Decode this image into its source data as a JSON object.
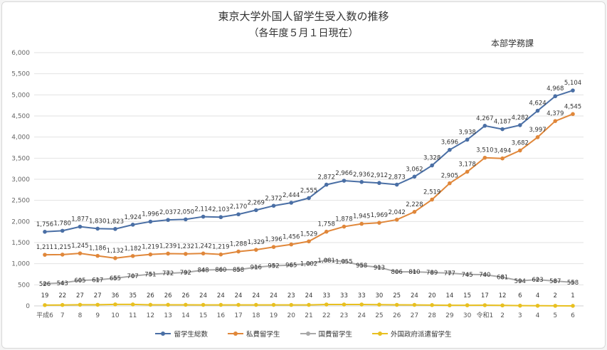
{
  "title": "東京大学外国人留学生受入数の推移",
  "subtitle": "（各年度５月１日現在）",
  "department": "本部学務課",
  "chart_data": {
    "type": "line",
    "categories": [
      "平成6",
      "7",
      "8",
      "9",
      "10",
      "11",
      "12",
      "13",
      "14",
      "15",
      "16",
      "17",
      "18",
      "19",
      "20",
      "21",
      "22",
      "23",
      "24",
      "25",
      "26",
      "27",
      "28",
      "29",
      "30",
      "令和1",
      "2",
      "3",
      "4",
      "5",
      "6"
    ],
    "ylim": [
      0,
      6000
    ],
    "yticks": [
      "0",
      "500",
      "1,000",
      "1,500",
      "2,000",
      "2,500",
      "3,000",
      "3,500",
      "4,000",
      "4,500",
      "5,000",
      "5,500",
      "6,000"
    ],
    "grid": true,
    "legend_position": "bottom",
    "series": [
      {
        "name": "留学生総数",
        "color": "#4a6fa5",
        "values": [
          1756,
          1780,
          1877,
          1830,
          1823,
          1924,
          1996,
          2037,
          2050,
          2114,
          2103,
          2170,
          2269,
          2372,
          2444,
          2555,
          2872,
          2966,
          2936,
          2912,
          2873,
          3062,
          3328,
          3696,
          3938,
          4267,
          4187,
          4282,
          4624,
          4968,
          5104
        ],
        "labels": [
          "1,756",
          "1,780",
          "1,877",
          "1,830",
          "1,823",
          "1,924",
          "1,996",
          "2,037",
          "2,050",
          "2,114",
          "2,103",
          "2,170",
          "2,269",
          "2,372",
          "2,444",
          "2,555",
          "2,872",
          "2,966",
          "2,936",
          "2,912",
          "2,873",
          "3,062",
          "3,328",
          "3,696",
          "3,938",
          "4,267",
          "4,187",
          "4,282",
          "4,624",
          "4,968",
          "5,104"
        ]
      },
      {
        "name": "私費留学生",
        "color": "#e0873a",
        "values": [
          1211,
          1215,
          1245,
          1186,
          1132,
          1182,
          1219,
          1239,
          1232,
          1242,
          1219,
          1288,
          1329,
          1396,
          1456,
          1529,
          1758,
          1878,
          1945,
          1969,
          2042,
          2228,
          2519,
          2905,
          3178,
          3510,
          3494,
          3682,
          3997,
          4379,
          4545
        ],
        "labels": [
          "1,211",
          "1,215",
          "1,245",
          "1,186",
          "1,132",
          "1,182",
          "1,219",
          "1,239",
          "1,232",
          "1,242",
          "1,219",
          "1,288",
          "1,329",
          "1,396",
          "1,456",
          "1,529",
          "1,758",
          "1,878",
          "1,945",
          "1,969",
          "2,042",
          "2,228",
          "2,519",
          "2,905",
          "3,178",
          "3,510",
          "3,494",
          "3,682",
          "3,997",
          "4,379",
          "4,545"
        ]
      },
      {
        "name": "国費留学生",
        "color": "#a8a8a8",
        "values": [
          526,
          543,
          605,
          617,
          655,
          707,
          751,
          772,
          792,
          848,
          860,
          858,
          916,
          952,
          965,
          1002,
          1081,
          1055,
          958,
          913,
          806,
          810,
          789,
          777,
          745,
          740,
          681,
          594,
          623,
          587,
          558
        ],
        "labels": [
          "526",
          "543",
          "605",
          "617",
          "655",
          "707",
          "751",
          "772",
          "792",
          "848",
          "860",
          "858",
          "916",
          "952",
          "965",
          "1,002",
          "1,081",
          "1,055",
          "958",
          "913",
          "806",
          "810",
          "789",
          "777",
          "745",
          "740",
          "681",
          "594",
          "623",
          "587",
          "558"
        ]
      },
      {
        "name": "外国政府派遣留学生",
        "color": "#e8c020",
        "values": [
          19,
          22,
          27,
          27,
          36,
          35,
          26,
          26,
          26,
          24,
          24,
          24,
          24,
          24,
          23,
          24,
          33,
          33,
          33,
          30,
          25,
          24,
          20,
          14,
          15,
          17,
          12,
          6,
          4,
          2,
          1
        ],
        "labels": [
          "19",
          "22",
          "27",
          "27",
          "36",
          "35",
          "26",
          "26",
          "26",
          "24",
          "24",
          "24",
          "24",
          "24",
          "23",
          "24",
          "33",
          "33",
          "33",
          "30",
          "25",
          "24",
          "20",
          "14",
          "15",
          "17",
          "12",
          "6",
          "4",
          "2",
          "1"
        ]
      }
    ]
  }
}
